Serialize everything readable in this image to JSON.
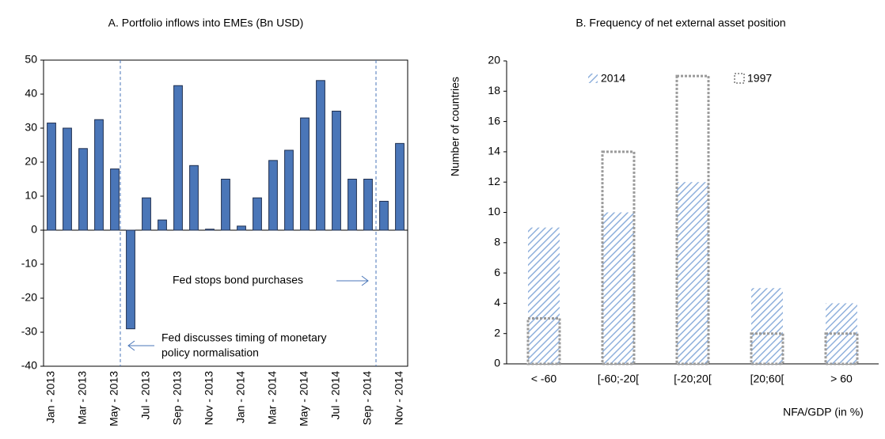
{
  "chart_data": [
    {
      "type": "bar",
      "title": "A. Portfolio inflows into EMEs (Bn USD)",
      "categories": [
        "Jan - 2013",
        null,
        "Mar - 2013",
        null,
        "May - 2013",
        null,
        "Jul - 2013",
        null,
        "Sep - 2013",
        null,
        "Nov - 2013",
        null,
        "Jan - 2014",
        null,
        "Mar - 2014",
        null,
        "May - 2014",
        null,
        "Jul - 2014",
        null,
        "Sep - 2014",
        null,
        "Nov - 2014"
      ],
      "values": [
        31.5,
        30,
        24,
        32.5,
        18,
        -29,
        9.5,
        3,
        42.5,
        19,
        0.3,
        15,
        1.2,
        9.5,
        20.5,
        23.5,
        33,
        44,
        35,
        15,
        15,
        8.5,
        25.5
      ],
      "color": "#4a76b8",
      "ylim": [
        -40,
        50
      ],
      "yticks": [
        -40,
        -30,
        -20,
        -10,
        0,
        10,
        20,
        30,
        40,
        50
      ],
      "annotations": [
        "Fed stops bond purchases",
        "Fed discusses timing of monetary",
        "policy  normalisation"
      ]
    },
    {
      "type": "overlap-bar",
      "title": "B. Frequency of net external asset position",
      "categories": [
        "< -60",
        "[-60;-20[",
        "[-20;20[",
        "[20;60[",
        "> 60"
      ],
      "series": [
        {
          "name": "2014",
          "color": "#8fb0dc",
          "values": [
            9,
            10,
            12,
            5,
            4
          ]
        },
        {
          "name": "1997",
          "color": "#9a9a9a",
          "values": [
            3,
            14,
            19,
            2,
            2
          ]
        }
      ],
      "ylim": [
        0,
        20
      ],
      "yticks": [
        0,
        2,
        4,
        6,
        8,
        10,
        12,
        14,
        16,
        18,
        20
      ],
      "y_title": "Number of countries",
      "x_title": "NFA/GDP (in %)"
    }
  ]
}
